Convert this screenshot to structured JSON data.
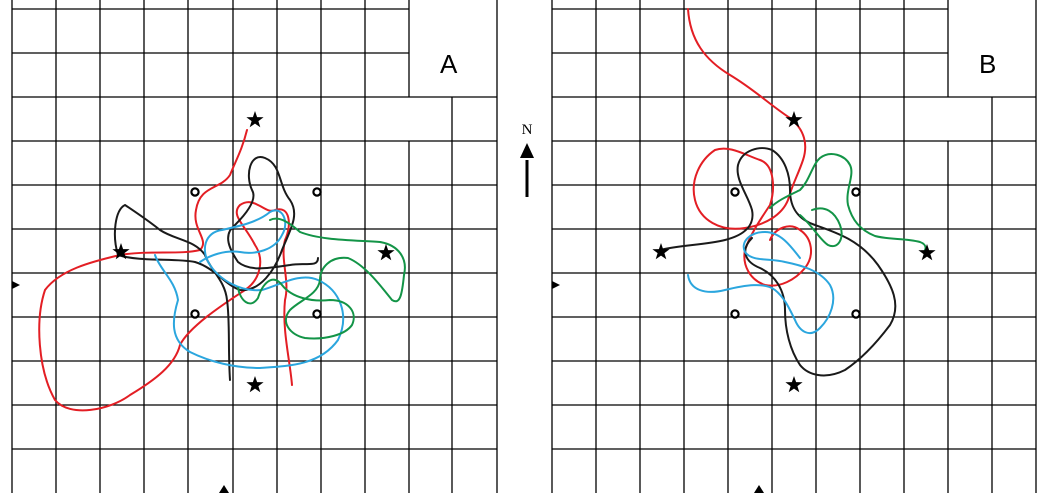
{
  "panels": [
    {
      "label": "A"
    },
    {
      "label": "B"
    }
  ],
  "compass": {
    "label": "N"
  },
  "colors": {
    "grid": "#000000",
    "track_red": "#e31e24",
    "track_black": "#1a1a1a",
    "track_blue": "#2ba6de",
    "track_green": "#139447"
  },
  "icons": [
    "star-icon",
    "hole-icon",
    "north-arrow-icon",
    "start-marker-icon"
  ]
}
